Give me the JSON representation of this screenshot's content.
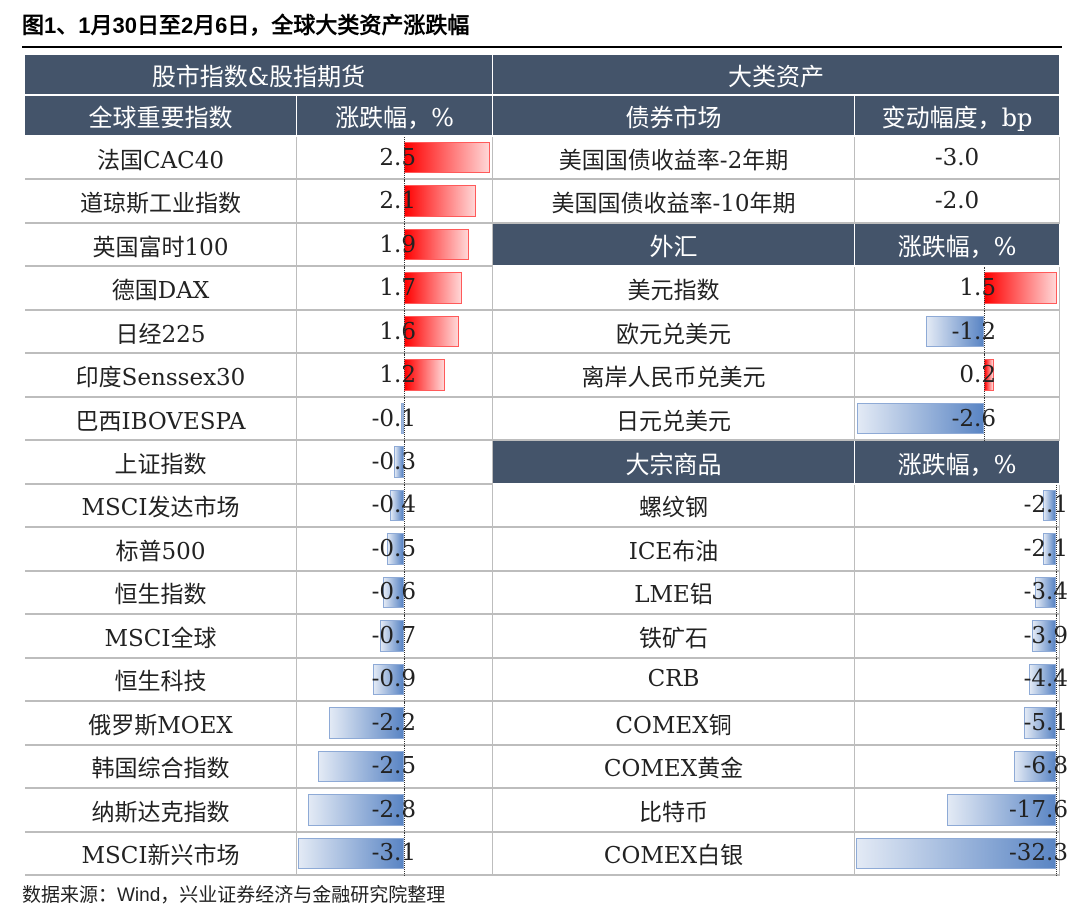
{
  "title": "图1、1月30日至2月6日，全球大类资产涨跌幅",
  "source": "数据来源：Wind，兴业证券经济与金融研究院整理",
  "colors": {
    "header": "#44546a",
    "positive": "#ff0000",
    "negative": "#5a85c4"
  },
  "left": {
    "section": "股市指数&股指期货",
    "col_name": "全球重要指数",
    "col_value": "涨跌幅，%",
    "rows": [
      [
        "法国CAC40",
        "2.5"
      ],
      [
        "道琼斯工业指数",
        "2.1"
      ],
      [
        "英国富时100",
        "1.9"
      ],
      [
        "德国DAX",
        "1.7"
      ],
      [
        "日经225",
        "1.6"
      ],
      [
        "印度Senssex30",
        "1.2"
      ],
      [
        "巴西IBOVESPA",
        "-0.1"
      ],
      [
        "上证指数",
        "-0.3"
      ],
      [
        "MSCI发达市场",
        "-0.4"
      ],
      [
        "标普500",
        "-0.5"
      ],
      [
        "恒生指数",
        "-0.6"
      ],
      [
        "MSCI全球",
        "-0.7"
      ],
      [
        "恒生科技",
        "-0.9"
      ],
      [
        "俄罗斯MOEX",
        "-2.2"
      ],
      [
        "韩国综合指数",
        "-2.5"
      ],
      [
        "纳斯达克指数",
        "-2.8"
      ],
      [
        "MSCI新兴市场",
        "-3.1"
      ]
    ]
  },
  "right": {
    "section": "大类资产",
    "groups": [
      {
        "col_name": "债券市场",
        "col_value": "变动幅度，bp",
        "bars": false,
        "rows": [
          [
            "美国国债收益率-2年期",
            "-3.0"
          ],
          [
            "美国国债收益率-10年期",
            "-2.0"
          ]
        ]
      },
      {
        "col_name": "外汇",
        "col_value": "涨跌幅，%",
        "bars": true,
        "rows": [
          [
            "美元指数",
            "1.5"
          ],
          [
            "欧元兑美元",
            "-1.2"
          ],
          [
            "离岸人民币兑美元",
            "0.2"
          ],
          [
            "日元兑美元",
            "-2.6"
          ]
        ]
      },
      {
        "col_name": "大宗商品",
        "col_value": "涨跌幅，%",
        "bars": true,
        "rows": [
          [
            "螺纹钢",
            "-2.1"
          ],
          [
            "ICE布油",
            "-2.1"
          ],
          [
            "LME铝",
            "-3.4"
          ],
          [
            "铁矿石",
            "-3.9"
          ],
          [
            "CRB",
            "-4.4"
          ],
          [
            "COMEX铜",
            "-5.1"
          ],
          [
            "COMEX黄金",
            "-6.8"
          ],
          [
            "比特币",
            "-17.6"
          ],
          [
            "COMEX白银",
            "-32.3"
          ]
        ]
      }
    ]
  }
}
